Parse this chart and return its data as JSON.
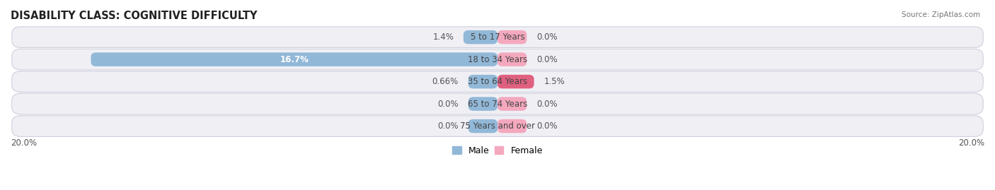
{
  "title": "DISABILITY CLASS: COGNITIVE DIFFICULTY",
  "source": "Source: ZipAtlas.com",
  "categories": [
    "5 to 17 Years",
    "18 to 34 Years",
    "35 to 64 Years",
    "65 to 74 Years",
    "75 Years and over"
  ],
  "male_values": [
    1.4,
    16.7,
    0.66,
    0.0,
    0.0
  ],
  "female_values": [
    0.0,
    0.0,
    1.5,
    0.0,
    0.0
  ],
  "max_val": 20.0,
  "male_color": "#92b8d8",
  "female_color": "#f4a8be",
  "female_color_dark": "#e06080",
  "row_bg_color": "#efeff4",
  "row_edge_color": "#d0d0de",
  "axis_label_left": "20.0%",
  "axis_label_right": "20.0%",
  "title_fontsize": 10.5,
  "label_fontsize": 8.5,
  "value_fontsize": 8.5,
  "legend_fontsize": 9,
  "center_label_color": "#444444",
  "value_label_color": "#555555",
  "white_text_color": "#ffffff",
  "min_bar_width": 1.2
}
